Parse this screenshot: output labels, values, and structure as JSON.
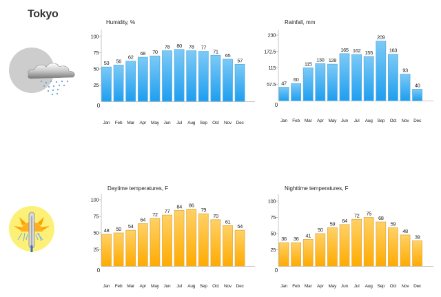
{
  "page": {
    "city": "Tokyo"
  },
  "icons": {
    "rain": "cloud-rain-icon",
    "temperature": "sun-thermometer-icon"
  },
  "colors": {
    "blue_top": "#7ccaf6",
    "blue_bottom": "#1e9ef0",
    "blue_border": "#5aaee0",
    "orange_top": "#ffd166",
    "orange_bottom": "#ffab00",
    "orange_border": "#e2ac45"
  },
  "chart_data": [
    {
      "id": "humidity",
      "type": "bar",
      "title": "Humidity, %",
      "categories": [
        "Jan",
        "Feb",
        "Mar",
        "Apr",
        "May",
        "Jun",
        "Jul",
        "Aug",
        "Sep",
        "Oct",
        "Nov",
        "Dec"
      ],
      "values": [
        53,
        56,
        62,
        68,
        70,
        78,
        80,
        78,
        77,
        71,
        65,
        57
      ],
      "yticks": [
        "100",
        "75",
        "50",
        "25"
      ],
      "ytick_values": [
        100,
        75,
        50,
        25
      ],
      "zero_label": "0",
      "ylim": [
        0,
        100
      ],
      "color": "blue",
      "grid": false
    },
    {
      "id": "rainfall",
      "type": "bar",
      "title": "Rainfall, mm",
      "categories": [
        "Jan",
        "Feb",
        "Mar",
        "Apr",
        "May",
        "Jun",
        "Jul",
        "Aug",
        "Sep",
        "Oct",
        "Nov",
        "Dec"
      ],
      "values": [
        47,
        60,
        115,
        130,
        128,
        165,
        162,
        155,
        209,
        163,
        93,
        40
      ],
      "yticks": [
        "230",
        "172.5",
        "115",
        "57.5"
      ],
      "ytick_values": [
        230,
        172.5,
        115,
        57.5
      ],
      "zero_label": "0",
      "ylim": [
        0,
        230
      ],
      "color": "blue",
      "grid": false
    },
    {
      "id": "daytime",
      "type": "bar",
      "title": "Daytime temperatures, F",
      "categories": [
        "Jan",
        "Feb",
        "Mar",
        "Apr",
        "May",
        "Jun",
        "Jul",
        "Aug",
        "Sep",
        "Oct",
        "Nov",
        "Dec"
      ],
      "values": [
        48,
        50,
        54,
        64,
        72,
        77,
        84,
        86,
        79,
        70,
        61,
        54
      ],
      "yticks": [
        "100",
        "75",
        "50",
        "25"
      ],
      "ytick_values": [
        100,
        75,
        50,
        25
      ],
      "zero_label": "0",
      "ylim": [
        0,
        100
      ],
      "color": "orange",
      "grid": false
    },
    {
      "id": "nighttime",
      "type": "bar",
      "title": "Nighttime temperatures, F",
      "categories": [
        "Jan",
        "Feb",
        "Mar",
        "Apr",
        "May",
        "Jun",
        "Jul",
        "Aug",
        "Sep",
        "Oct",
        "Nov",
        "Dec"
      ],
      "values": [
        36,
        36,
        41,
        50,
        59,
        64,
        72,
        75,
        68,
        59,
        48,
        39
      ],
      "yticks": [
        "100",
        "75",
        "50",
        "25"
      ],
      "ytick_values": [
        100,
        75,
        50,
        25
      ],
      "zero_label": "0",
      "ylim": [
        0,
        100
      ],
      "color": "orange",
      "grid": false
    }
  ]
}
